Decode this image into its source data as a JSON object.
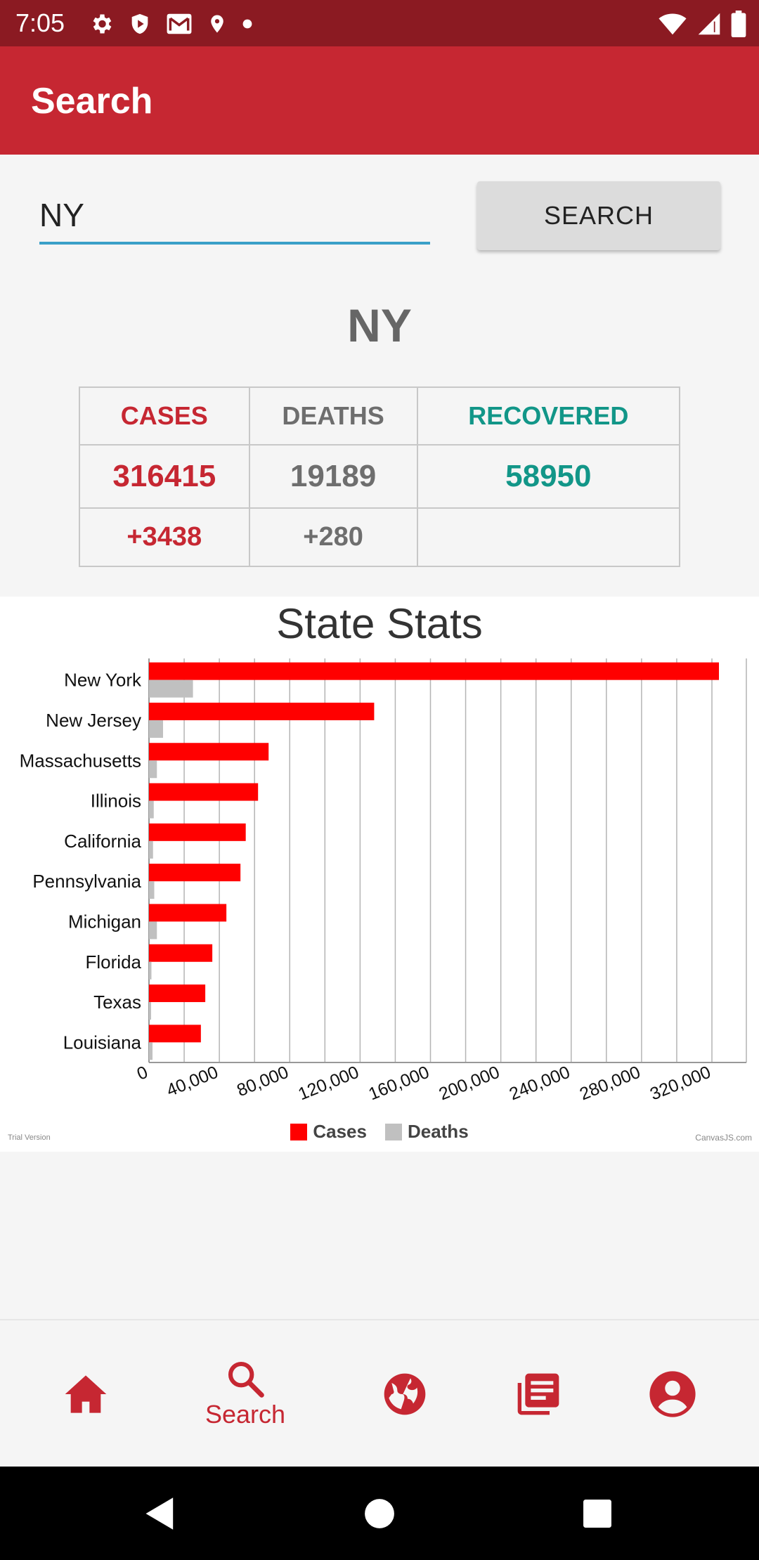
{
  "status_bar": {
    "time": "7:05",
    "left_icons": [
      "settings-icon",
      "shield-icon",
      "gmail-icon",
      "location-icon",
      "dot-icon"
    ],
    "right_icons": [
      "wifi-icon",
      "cell-signal-icon",
      "battery-icon"
    ]
  },
  "app_bar": {
    "title": "Search"
  },
  "search": {
    "value": "NY",
    "button_label": "SEARCH"
  },
  "region": {
    "title": "NY"
  },
  "stats": {
    "headers": [
      "CASES",
      "DEATHS",
      "RECOVERED"
    ],
    "values": [
      "316415",
      "19189",
      "58950"
    ],
    "deltas": [
      "+3438",
      "+280",
      ""
    ]
  },
  "chart_footer": {
    "trial": "Trial Version",
    "credit": "CanvasJS.com"
  },
  "chart_data": {
    "type": "bar",
    "orientation": "horizontal",
    "title": "State Stats",
    "categories": [
      "New York",
      "New Jersey",
      "Massachusetts",
      "Illinois",
      "California",
      "Pennsylvania",
      "Michigan",
      "Florida",
      "Texas",
      "Louisiana"
    ],
    "series": [
      {
        "name": "Cases",
        "color": "#ff0000",
        "values": [
          324000,
          128000,
          68000,
          62000,
          55000,
          52000,
          44000,
          36000,
          32000,
          29500
        ]
      },
      {
        "name": "Deaths",
        "color": "#c0c0c0",
        "values": [
          25000,
          8000,
          4500,
          2700,
          2300,
          3000,
          4500,
          1400,
          800,
          2000
        ]
      }
    ],
    "x_ticks": [
      "0",
      "40,000",
      "80,000",
      "120,000",
      "160,000",
      "200,000",
      "240,000",
      "280,000",
      "320,000"
    ],
    "xlim": [
      0,
      340000
    ],
    "grid": true,
    "legend_position": "bottom"
  },
  "bottom_nav": {
    "items": [
      {
        "icon": "home-icon",
        "label": ""
      },
      {
        "icon": "search-icon",
        "label": "Search"
      },
      {
        "icon": "globe-icon",
        "label": ""
      },
      {
        "icon": "news-icon",
        "label": ""
      },
      {
        "icon": "account-icon",
        "label": ""
      }
    ]
  },
  "colors": {
    "primary": "#c62732",
    "status_bar": "#8b1a22",
    "recovered": "#129688",
    "input_underline": "#3aa0c8"
  }
}
